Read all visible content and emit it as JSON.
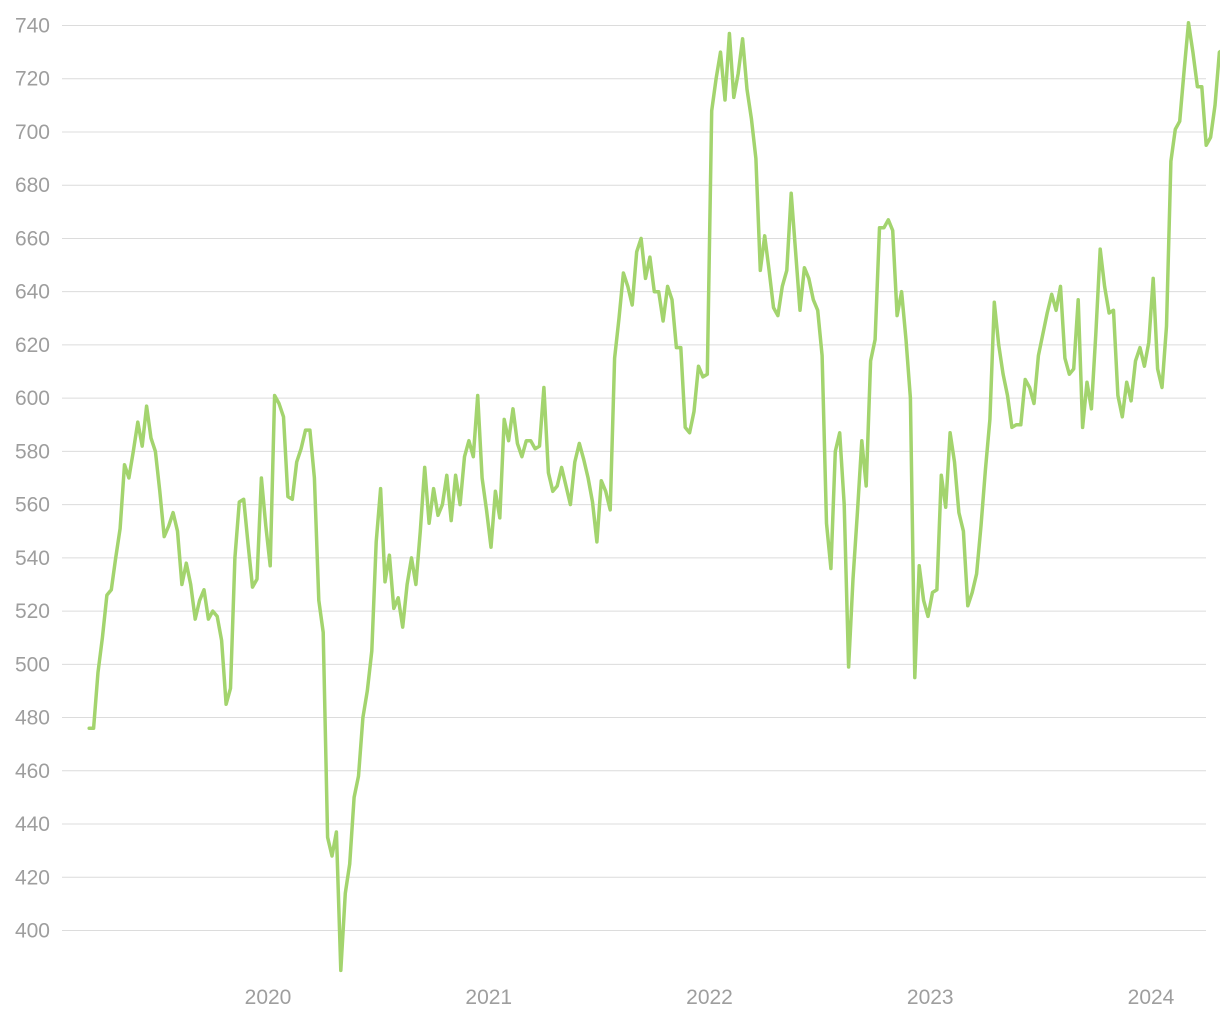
{
  "chart_data": {
    "type": "line",
    "title": "",
    "xlabel": "",
    "ylabel": "",
    "x_ticks": [
      {
        "label": "2020",
        "x": 2020.0
      },
      {
        "label": "2021",
        "x": 2021.0
      },
      {
        "label": "2022",
        "x": 2022.0
      },
      {
        "label": "2023",
        "x": 2023.0
      },
      {
        "label": "2024",
        "x": 2024.0
      }
    ],
    "y_ticks": [
      400,
      420,
      440,
      460,
      480,
      500,
      520,
      540,
      560,
      580,
      600,
      620,
      640,
      660,
      680,
      700,
      720,
      740
    ],
    "xlim": [
      2019.0,
      2024.22
    ],
    "ylim": [
      385,
      745
    ],
    "grid": "horizontal",
    "legend": "none",
    "series": [
      {
        "color": "#a3d46e",
        "points": [
          [
            2019.19,
            476
          ],
          [
            2019.21,
            476
          ],
          [
            2019.23,
            497
          ],
          [
            2019.25,
            510
          ],
          [
            2019.27,
            526
          ],
          [
            2019.29,
            528
          ],
          [
            2019.31,
            540
          ],
          [
            2019.33,
            551
          ],
          [
            2019.35,
            575
          ],
          [
            2019.37,
            570
          ],
          [
            2019.39,
            580
          ],
          [
            2019.41,
            591
          ],
          [
            2019.43,
            582
          ],
          [
            2019.45,
            597
          ],
          [
            2019.47,
            585
          ],
          [
            2019.49,
            580
          ],
          [
            2019.51,
            565
          ],
          [
            2019.53,
            548
          ],
          [
            2019.55,
            552
          ],
          [
            2019.57,
            557
          ],
          [
            2019.59,
            550
          ],
          [
            2019.61,
            530
          ],
          [
            2019.63,
            538
          ],
          [
            2019.65,
            530
          ],
          [
            2019.67,
            517
          ],
          [
            2019.69,
            524
          ],
          [
            2019.71,
            528
          ],
          [
            2019.73,
            517
          ],
          [
            2019.75,
            520
          ],
          [
            2019.77,
            518
          ],
          [
            2019.79,
            509
          ],
          [
            2019.81,
            485
          ],
          [
            2019.83,
            491
          ],
          [
            2019.85,
            540
          ],
          [
            2019.87,
            561
          ],
          [
            2019.89,
            562
          ],
          [
            2019.91,
            545
          ],
          [
            2019.93,
            529
          ],
          [
            2019.95,
            532
          ],
          [
            2019.97,
            570
          ],
          [
            2019.99,
            552
          ],
          [
            2020.01,
            537
          ],
          [
            2020.03,
            601
          ],
          [
            2020.05,
            598
          ],
          [
            2020.07,
            593
          ],
          [
            2020.09,
            563
          ],
          [
            2020.11,
            562
          ],
          [
            2020.13,
            576
          ],
          [
            2020.15,
            581
          ],
          [
            2020.17,
            588
          ],
          [
            2020.19,
            588
          ],
          [
            2020.21,
            570
          ],
          [
            2020.23,
            524
          ],
          [
            2020.25,
            512
          ],
          [
            2020.27,
            435
          ],
          [
            2020.29,
            428
          ],
          [
            2020.31,
            437
          ],
          [
            2020.33,
            385
          ],
          [
            2020.35,
            414
          ],
          [
            2020.37,
            425
          ],
          [
            2020.39,
            450
          ],
          [
            2020.41,
            458
          ],
          [
            2020.43,
            480
          ],
          [
            2020.45,
            490
          ],
          [
            2020.47,
            505
          ],
          [
            2020.49,
            546
          ],
          [
            2020.51,
            566
          ],
          [
            2020.53,
            531
          ],
          [
            2020.55,
            541
          ],
          [
            2020.57,
            521
          ],
          [
            2020.59,
            525
          ],
          [
            2020.61,
            514
          ],
          [
            2020.63,
            530
          ],
          [
            2020.65,
            540
          ],
          [
            2020.67,
            530
          ],
          [
            2020.69,
            550
          ],
          [
            2020.71,
            574
          ],
          [
            2020.73,
            553
          ],
          [
            2020.75,
            566
          ],
          [
            2020.77,
            556
          ],
          [
            2020.79,
            560
          ],
          [
            2020.81,
            571
          ],
          [
            2020.83,
            554
          ],
          [
            2020.85,
            571
          ],
          [
            2020.87,
            560
          ],
          [
            2020.89,
            578
          ],
          [
            2020.91,
            584
          ],
          [
            2020.93,
            578
          ],
          [
            2020.95,
            601
          ],
          [
            2020.97,
            570
          ],
          [
            2020.99,
            558
          ],
          [
            2021.01,
            544
          ],
          [
            2021.03,
            565
          ],
          [
            2021.05,
            555
          ],
          [
            2021.07,
            592
          ],
          [
            2021.09,
            584
          ],
          [
            2021.11,
            596
          ],
          [
            2021.13,
            583
          ],
          [
            2021.15,
            578
          ],
          [
            2021.17,
            584
          ],
          [
            2021.19,
            584
          ],
          [
            2021.21,
            581
          ],
          [
            2021.23,
            582
          ],
          [
            2021.25,
            604
          ],
          [
            2021.27,
            572
          ],
          [
            2021.29,
            565
          ],
          [
            2021.31,
            567
          ],
          [
            2021.33,
            574
          ],
          [
            2021.35,
            567
          ],
          [
            2021.37,
            560
          ],
          [
            2021.39,
            576
          ],
          [
            2021.41,
            583
          ],
          [
            2021.43,
            577
          ],
          [
            2021.45,
            570
          ],
          [
            2021.47,
            561
          ],
          [
            2021.49,
            546
          ],
          [
            2021.51,
            569
          ],
          [
            2021.53,
            565
          ],
          [
            2021.55,
            558
          ],
          [
            2021.57,
            615
          ],
          [
            2021.59,
            630
          ],
          [
            2021.61,
            647
          ],
          [
            2021.63,
            642
          ],
          [
            2021.65,
            635
          ],
          [
            2021.67,
            655
          ],
          [
            2021.69,
            660
          ],
          [
            2021.71,
            645
          ],
          [
            2021.73,
            653
          ],
          [
            2021.75,
            640
          ],
          [
            2021.77,
            640
          ],
          [
            2021.79,
            629
          ],
          [
            2021.81,
            642
          ],
          [
            2021.83,
            637
          ],
          [
            2021.85,
            619
          ],
          [
            2021.87,
            619
          ],
          [
            2021.89,
            589
          ],
          [
            2021.91,
            587
          ],
          [
            2021.93,
            595
          ],
          [
            2021.95,
            612
          ],
          [
            2021.97,
            608
          ],
          [
            2021.99,
            609
          ],
          [
            2022.01,
            708
          ],
          [
            2022.03,
            720
          ],
          [
            2022.05,
            730
          ],
          [
            2022.07,
            712
          ],
          [
            2022.09,
            737
          ],
          [
            2022.11,
            713
          ],
          [
            2022.13,
            722
          ],
          [
            2022.15,
            735
          ],
          [
            2022.17,
            716
          ],
          [
            2022.19,
            705
          ],
          [
            2022.21,
            690
          ],
          [
            2022.23,
            648
          ],
          [
            2022.25,
            661
          ],
          [
            2022.27,
            648
          ],
          [
            2022.29,
            634
          ],
          [
            2022.31,
            631
          ],
          [
            2022.33,
            642
          ],
          [
            2022.35,
            648
          ],
          [
            2022.37,
            677
          ],
          [
            2022.39,
            655
          ],
          [
            2022.41,
            633
          ],
          [
            2022.43,
            649
          ],
          [
            2022.45,
            645
          ],
          [
            2022.47,
            637
          ],
          [
            2022.49,
            633
          ],
          [
            2022.51,
            616
          ],
          [
            2022.53,
            553
          ],
          [
            2022.55,
            536
          ],
          [
            2022.57,
            580
          ],
          [
            2022.59,
            587
          ],
          [
            2022.61,
            560
          ],
          [
            2022.63,
            499
          ],
          [
            2022.65,
            532
          ],
          [
            2022.67,
            557
          ],
          [
            2022.69,
            584
          ],
          [
            2022.71,
            567
          ],
          [
            2022.73,
            614
          ],
          [
            2022.75,
            622
          ],
          [
            2022.77,
            664
          ],
          [
            2022.79,
            664
          ],
          [
            2022.81,
            667
          ],
          [
            2022.83,
            663
          ],
          [
            2022.85,
            631
          ],
          [
            2022.87,
            640
          ],
          [
            2022.89,
            622
          ],
          [
            2022.91,
            600
          ],
          [
            2022.93,
            495
          ],
          [
            2022.95,
            537
          ],
          [
            2022.97,
            524
          ],
          [
            2022.99,
            518
          ],
          [
            2023.01,
            527
          ],
          [
            2023.03,
            528
          ],
          [
            2023.05,
            571
          ],
          [
            2023.07,
            559
          ],
          [
            2023.09,
            587
          ],
          [
            2023.11,
            576
          ],
          [
            2023.13,
            557
          ],
          [
            2023.15,
            550
          ],
          [
            2023.17,
            522
          ],
          [
            2023.19,
            527
          ],
          [
            2023.21,
            534
          ],
          [
            2023.23,
            552
          ],
          [
            2023.25,
            573
          ],
          [
            2023.27,
            592
          ],
          [
            2023.29,
            636
          ],
          [
            2023.31,
            620
          ],
          [
            2023.33,
            609
          ],
          [
            2023.35,
            601
          ],
          [
            2023.37,
            589
          ],
          [
            2023.39,
            590
          ],
          [
            2023.41,
            590
          ],
          [
            2023.43,
            607
          ],
          [
            2023.45,
            604
          ],
          [
            2023.47,
            598
          ],
          [
            2023.49,
            616
          ],
          [
            2023.51,
            624
          ],
          [
            2023.53,
            632
          ],
          [
            2023.55,
            639
          ],
          [
            2023.57,
            633
          ],
          [
            2023.59,
            642
          ],
          [
            2023.61,
            615
          ],
          [
            2023.63,
            609
          ],
          [
            2023.65,
            611
          ],
          [
            2023.67,
            637
          ],
          [
            2023.69,
            589
          ],
          [
            2023.71,
            606
          ],
          [
            2023.73,
            596
          ],
          [
            2023.75,
            624
          ],
          [
            2023.77,
            656
          ],
          [
            2023.79,
            642
          ],
          [
            2023.81,
            632
          ],
          [
            2023.83,
            633
          ],
          [
            2023.85,
            601
          ],
          [
            2023.87,
            593
          ],
          [
            2023.89,
            606
          ],
          [
            2023.91,
            599
          ],
          [
            2023.93,
            614
          ],
          [
            2023.95,
            619
          ],
          [
            2023.97,
            612
          ],
          [
            2023.99,
            621
          ],
          [
            2024.01,
            645
          ],
          [
            2024.03,
            611
          ],
          [
            2024.05,
            604
          ],
          [
            2024.07,
            627
          ],
          [
            2024.09,
            689
          ],
          [
            2024.11,
            701
          ],
          [
            2024.13,
            704
          ],
          [
            2024.15,
            723
          ],
          [
            2024.17,
            741
          ],
          [
            2024.19,
            730
          ],
          [
            2024.21,
            717
          ],
          [
            2024.23,
            717
          ],
          [
            2024.25,
            695
          ],
          [
            2024.27,
            698
          ],
          [
            2024.29,
            710
          ],
          [
            2024.31,
            730
          ],
          [
            2024.33,
            731
          ],
          [
            2024.35,
            720
          ],
          [
            2024.37,
            712
          ],
          [
            2024.39,
            725
          ],
          [
            2024.41,
            740
          ]
        ]
      }
    ]
  }
}
